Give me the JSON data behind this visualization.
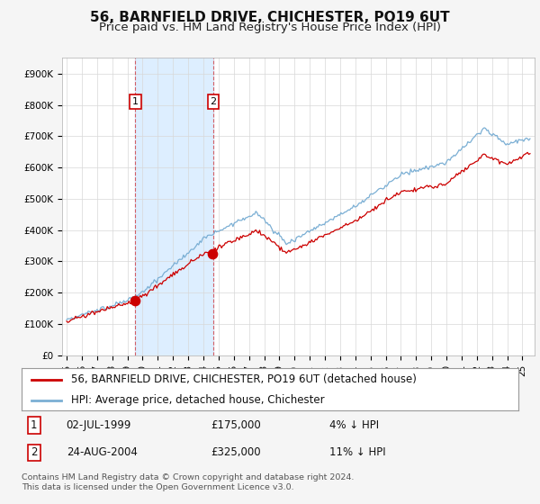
{
  "title": "56, BARNFIELD DRIVE, CHICHESTER, PO19 6UT",
  "subtitle": "Price paid vs. HM Land Registry's House Price Index (HPI)",
  "ylim": [
    0,
    950000
  ],
  "yticks": [
    0,
    100000,
    200000,
    300000,
    400000,
    500000,
    600000,
    700000,
    800000,
    900000
  ],
  "ytick_labels": [
    "£0",
    "£100K",
    "£200K",
    "£300K",
    "£400K",
    "£500K",
    "£600K",
    "£700K",
    "£800K",
    "£900K"
  ],
  "background_color": "#f5f5f5",
  "plot_bg_color": "#ffffff",
  "grid_color": "#d8d8d8",
  "red_line_color": "#cc0000",
  "blue_line_color": "#7bafd4",
  "fill_color": "#ddeeff",
  "purchase1_year": 1999.52,
  "purchase1_price": 175000,
  "purchase2_year": 2004.65,
  "purchase2_price": 325000,
  "legend_label_red": "56, BARNFIELD DRIVE, CHICHESTER, PO19 6UT (detached house)",
  "legend_label_blue": "HPI: Average price, detached house, Chichester",
  "transaction1_date": "02-JUL-1999",
  "transaction1_price": "£175,000",
  "transaction1_hpi": "4% ↓ HPI",
  "transaction2_date": "24-AUG-2004",
  "transaction2_price": "£325,000",
  "transaction2_hpi": "11% ↓ HPI",
  "footer": "Contains HM Land Registry data © Crown copyright and database right 2024.\nThis data is licensed under the Open Government Licence v3.0.",
  "title_fontsize": 11,
  "subtitle_fontsize": 9.5,
  "tick_fontsize": 7.5,
  "legend_fontsize": 8.5
}
